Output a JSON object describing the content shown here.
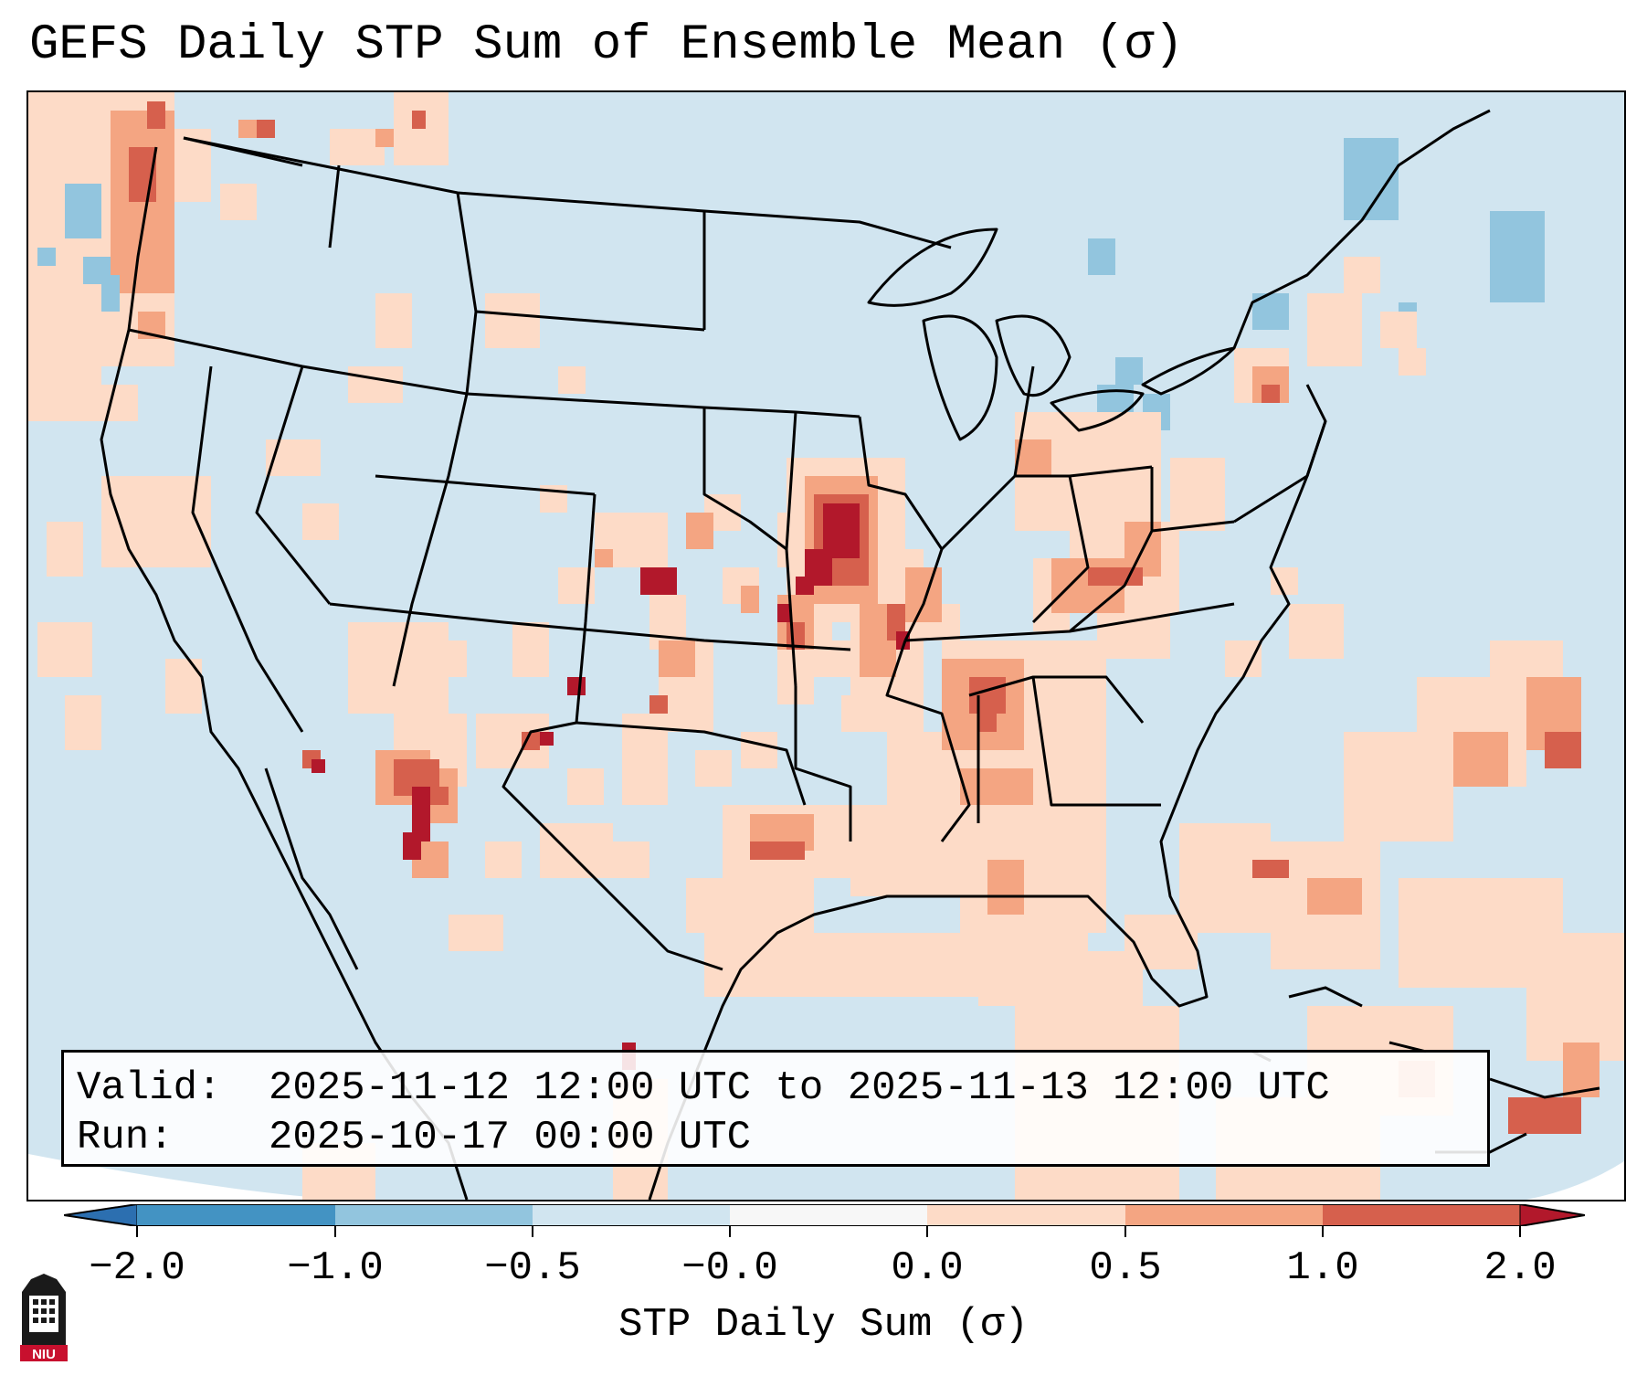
{
  "title": "GEFS Daily STP Sum of Ensemble Mean (σ)",
  "info": {
    "valid_label": "Valid:",
    "valid_value": "2025-11-12 12:00 UTC to 2025-11-13 12:00 UTC",
    "run_label": "Run:",
    "run_value": "2025-10-17 00:00 UTC"
  },
  "colorbar": {
    "label": "STP Daily Sum (σ)",
    "ticks": [
      "−2.0",
      "−1.0",
      "−0.5",
      "−0.0",
      "0.0",
      "0.5",
      "1.0",
      "2.0"
    ],
    "colors": {
      "lt_neg2": "#2c6fb0",
      "neg2_neg1": "#4393c3",
      "neg1_neg05": "#92c5de",
      "neg05_0": "#d1e5f0",
      "zero_band": "#f7f7f7",
      "pos0_05": "#fddbc7",
      "pos05_1": "#f4a582",
      "pos1_2": "#d6604d",
      "gt_2": "#b2182b",
      "background": "#d1e5f0"
    }
  },
  "logo": {
    "text": "NIU"
  }
}
